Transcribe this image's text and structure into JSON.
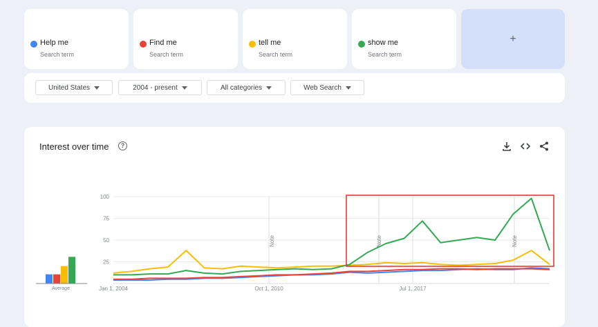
{
  "terms": [
    {
      "name": "Help me",
      "sub": "Search term",
      "color": "#4285f4"
    },
    {
      "name": "Find me",
      "sub": "Search term",
      "color": "#ea4335"
    },
    {
      "name": "tell me",
      "sub": "Search term",
      "color": "#fbbc04"
    },
    {
      "name": "show me",
      "sub": "Search term",
      "color": "#34a853"
    }
  ],
  "add_label": "+",
  "filters": {
    "region": "United States",
    "time": "2004 - present",
    "category": "All categories",
    "property": "Web Search"
  },
  "panel": {
    "title": "Interest over time",
    "help_icon": "help-circle-icon",
    "actions": [
      "download-icon",
      "embed-code-icon",
      "share-icon"
    ]
  },
  "highlight_color": "#e53935",
  "chart_data": {
    "type": "line",
    "y_ticks": [
      25,
      50,
      75,
      100
    ],
    "ylim": [
      0,
      100
    ],
    "x_tick_labels": [
      "Jan 1, 2004",
      "Oct 1, 2010",
      "Jul 1, 2017"
    ],
    "notes": [
      "Note",
      "Note"
    ],
    "average_label": "Average",
    "averages": [
      {
        "term": "Help me",
        "value": 10
      },
      {
        "term": "Find me",
        "value": 10
      },
      {
        "term": "tell me",
        "value": 19
      },
      {
        "term": "show me",
        "value": 29
      }
    ],
    "series": [
      {
        "name": "Help me",
        "color": "#4285f4",
        "values": [
          4,
          4,
          4,
          5,
          5,
          6,
          6,
          7,
          8,
          9,
          10,
          10,
          11,
          13,
          12,
          13,
          14,
          15,
          15,
          16,
          17,
          16,
          16,
          18,
          17
        ]
      },
      {
        "name": "Find me",
        "color": "#ea4335",
        "values": [
          5,
          5,
          6,
          6,
          6,
          7,
          7,
          8,
          9,
          10,
          10,
          11,
          12,
          14,
          14,
          15,
          16,
          16,
          17,
          17,
          16,
          17,
          17,
          17,
          16
        ]
      },
      {
        "name": "tell me",
        "color": "#fbbc04",
        "values": [
          12,
          14,
          17,
          19,
          38,
          18,
          17,
          20,
          19,
          18,
          19,
          20,
          20,
          21,
          22,
          24,
          23,
          24,
          22,
          21,
          22,
          23,
          27,
          38,
          22
        ]
      },
      {
        "name": "show me",
        "color": "#34a853",
        "values": [
          10,
          10,
          11,
          11,
          15,
          12,
          11,
          14,
          15,
          16,
          17,
          16,
          17,
          22,
          36,
          46,
          52,
          72,
          47,
          50,
          53,
          50,
          80,
          98,
          38
        ]
      }
    ]
  }
}
